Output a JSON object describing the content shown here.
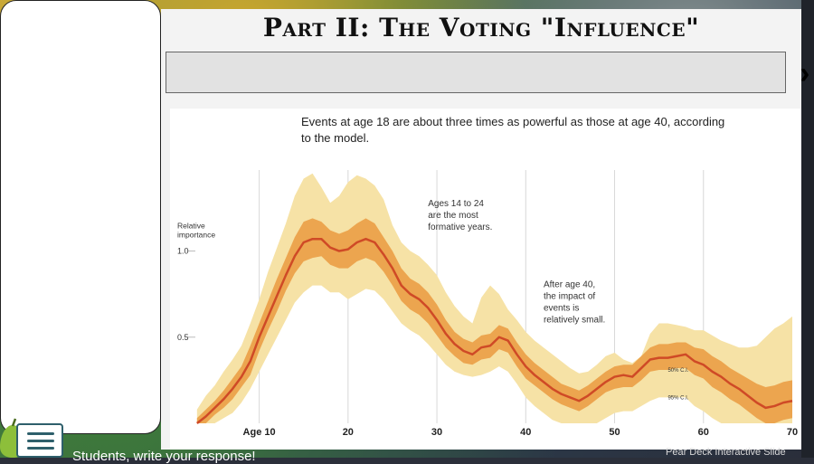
{
  "slide": {
    "title": "Part II: The Voting \"Influence\"",
    "answer_box_text": ""
  },
  "footer": {
    "prompt_text": "Students, write your response!",
    "pear_deck_label": "Pear Deck Interactive Slide"
  },
  "colors": {
    "ci95": "#f6e2a6",
    "ci50": "#eca54f",
    "line": "#cf4a26",
    "grid": "#d8d8d8"
  },
  "chart_data": {
    "type": "area",
    "title": "Events at age 18 are about three times as powerful as those at age 40, according to the model.",
    "ylabel": "Relative importance",
    "xlim": [
      2,
      70
    ],
    "ylim": [
      0,
      1.47
    ],
    "x_ticks": [
      {
        "x": 10,
        "label": "Age 10"
      },
      {
        "x": 20,
        "label": "20"
      },
      {
        "x": 30,
        "label": "30"
      },
      {
        "x": 40,
        "label": "40"
      },
      {
        "x": 50,
        "label": "50"
      },
      {
        "x": 60,
        "label": "60"
      },
      {
        "x": 70,
        "label": "70"
      }
    ],
    "y_ticks": [
      {
        "y": 0.5,
        "label": "0.5"
      },
      {
        "y": 1.0,
        "label": "1.0"
      }
    ],
    "grid": true,
    "x": [
      3,
      4,
      5,
      6,
      7,
      8,
      9,
      10,
      11,
      12,
      13,
      14,
      15,
      16,
      17,
      18,
      19,
      20,
      21,
      22,
      23,
      24,
      25,
      26,
      27,
      28,
      29,
      30,
      31,
      32,
      33,
      34,
      35,
      36,
      37,
      38,
      39,
      40,
      41,
      42,
      43,
      44,
      45,
      46,
      47,
      48,
      49,
      50,
      51,
      52,
      53,
      54,
      55,
      56,
      57,
      58,
      59,
      60,
      61,
      62,
      63,
      64,
      65,
      66,
      67,
      68,
      69,
      70
    ],
    "series": [
      {
        "values": [
          0.0,
          0.04,
          0.09,
          0.14,
          0.2,
          0.27,
          0.36,
          0.5,
          0.62,
          0.74,
          0.86,
          0.97,
          1.05,
          1.07,
          1.07,
          1.02,
          1.0,
          1.01,
          1.05,
          1.07,
          1.05,
          0.98,
          0.9,
          0.8,
          0.75,
          0.72,
          0.67,
          0.6,
          0.52,
          0.46,
          0.42,
          0.4,
          0.44,
          0.45,
          0.5,
          0.48,
          0.4,
          0.33,
          0.28,
          0.24,
          0.2,
          0.17,
          0.15,
          0.13,
          0.16,
          0.2,
          0.24,
          0.27,
          0.28,
          0.27,
          0.32,
          0.37,
          0.38,
          0.38,
          0.39,
          0.4,
          0.36,
          0.34,
          0.3,
          0.27,
          0.23,
          0.2,
          0.16,
          0.12,
          0.09,
          0.1,
          0.12,
          0.13
        ]
      }
    ],
    "ci50_upper": [
      0.03,
      0.08,
      0.13,
      0.19,
      0.26,
      0.33,
      0.45,
      0.58,
      0.71,
      0.84,
      0.96,
      1.08,
      1.17,
      1.19,
      1.17,
      1.12,
      1.1,
      1.12,
      1.16,
      1.19,
      1.16,
      1.08,
      1.0,
      0.9,
      0.84,
      0.81,
      0.76,
      0.69,
      0.6,
      0.53,
      0.49,
      0.47,
      0.51,
      0.52,
      0.57,
      0.55,
      0.47,
      0.4,
      0.35,
      0.31,
      0.27,
      0.23,
      0.21,
      0.19,
      0.22,
      0.26,
      0.3,
      0.33,
      0.34,
      0.34,
      0.39,
      0.44,
      0.46,
      0.46,
      0.47,
      0.47,
      0.44,
      0.43,
      0.39,
      0.36,
      0.32,
      0.29,
      0.26,
      0.23,
      0.21,
      0.22,
      0.24,
      0.25
    ],
    "ci50_lower": [
      0.0,
      0.0,
      0.05,
      0.09,
      0.14,
      0.21,
      0.28,
      0.42,
      0.54,
      0.65,
      0.77,
      0.87,
      0.94,
      0.96,
      0.97,
      0.92,
      0.9,
      0.9,
      0.94,
      0.96,
      0.94,
      0.88,
      0.8,
      0.71,
      0.66,
      0.63,
      0.58,
      0.51,
      0.44,
      0.39,
      0.35,
      0.34,
      0.37,
      0.38,
      0.43,
      0.41,
      0.33,
      0.26,
      0.22,
      0.18,
      0.14,
      0.11,
      0.09,
      0.07,
      0.1,
      0.14,
      0.18,
      0.2,
      0.21,
      0.21,
      0.25,
      0.3,
      0.31,
      0.31,
      0.32,
      0.32,
      0.28,
      0.26,
      0.21,
      0.18,
      0.14,
      0.11,
      0.07,
      0.03,
      0.0,
      0.0,
      0.02,
      0.03
    ],
    "ci95_upper": [
      0.08,
      0.16,
      0.22,
      0.3,
      0.37,
      0.45,
      0.58,
      0.72,
      0.88,
      1.02,
      1.16,
      1.32,
      1.42,
      1.45,
      1.37,
      1.28,
      1.32,
      1.4,
      1.44,
      1.42,
      1.38,
      1.3,
      1.15,
      1.05,
      1.0,
      0.97,
      0.92,
      0.86,
      0.76,
      0.68,
      0.62,
      0.58,
      0.73,
      0.8,
      0.75,
      0.66,
      0.6,
      0.53,
      0.48,
      0.44,
      0.4,
      0.36,
      0.32,
      0.29,
      0.3,
      0.34,
      0.39,
      0.41,
      0.37,
      0.35,
      0.39,
      0.52,
      0.58,
      0.58,
      0.57,
      0.56,
      0.54,
      0.54,
      0.51,
      0.48,
      0.46,
      0.44,
      0.44,
      0.45,
      0.5,
      0.55,
      0.58,
      0.62
    ],
    "ci95_lower": [
      0.0,
      0.0,
      0.0,
      0.03,
      0.06,
      0.12,
      0.2,
      0.3,
      0.4,
      0.5,
      0.6,
      0.7,
      0.76,
      0.8,
      0.8,
      0.76,
      0.76,
      0.72,
      0.75,
      0.78,
      0.77,
      0.72,
      0.65,
      0.58,
      0.54,
      0.51,
      0.46,
      0.4,
      0.34,
      0.3,
      0.28,
      0.27,
      0.28,
      0.3,
      0.33,
      0.3,
      0.23,
      0.15,
      0.1,
      0.06,
      0.02,
      0.0,
      0.0,
      0.0,
      0.0,
      0.0,
      0.03,
      0.06,
      0.07,
      0.07,
      0.1,
      0.13,
      0.15,
      0.15,
      0.15,
      0.15,
      0.1,
      0.07,
      0.03,
      0.0,
      0.0,
      0.0,
      0.0,
      0.0,
      0.0,
      0.0,
      0.0,
      0.0
    ],
    "annotations": [
      {
        "x": 29,
        "y": 1.26,
        "lines": [
          "Ages 14 to 24",
          "are the most",
          "formative years."
        ]
      },
      {
        "x": 42,
        "y": 0.79,
        "lines": [
          "After age 40,",
          "the impact of",
          "events is",
          "relatively small."
        ]
      },
      {
        "x": 56,
        "y": 0.3,
        "lines": [
          "50% C.I."
        ],
        "small": true
      },
      {
        "x": 56,
        "y": 0.14,
        "lines": [
          "95% C.I."
        ],
        "small": true
      }
    ]
  }
}
